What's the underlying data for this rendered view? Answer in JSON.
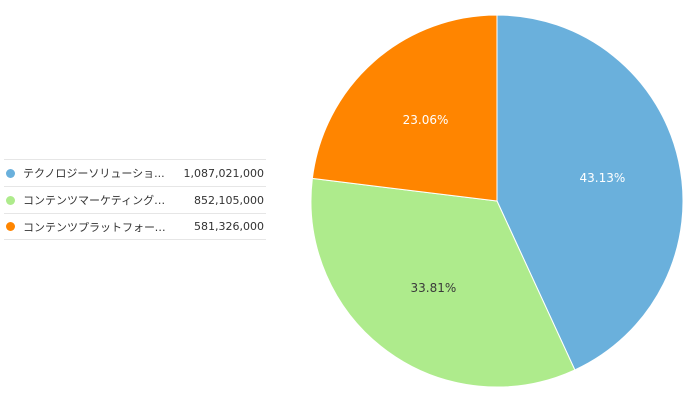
{
  "chart_data": {
    "type": "pie",
    "legend_position": "left",
    "slices": [
      {
        "name": "テクノロジーソリューショ...",
        "value": 1087021000,
        "value_label": "1,087,021,000",
        "percent_label": "43.13%",
        "color": "#6ab0dc",
        "label_color": "#ffffff"
      },
      {
        "name": "コンテンツマーケティングサ...",
        "value": 852105000,
        "value_label": "852,105,000",
        "percent_label": "33.81%",
        "color": "#aeeb8c",
        "label_color": "#3a3a3a"
      },
      {
        "name": "コンテンツプラットフォーム...",
        "value": 581326000,
        "value_label": "581,326,000",
        "percent_label": "23.06%",
        "color": "#ff8500",
        "label_color": "#ffffff"
      }
    ]
  }
}
